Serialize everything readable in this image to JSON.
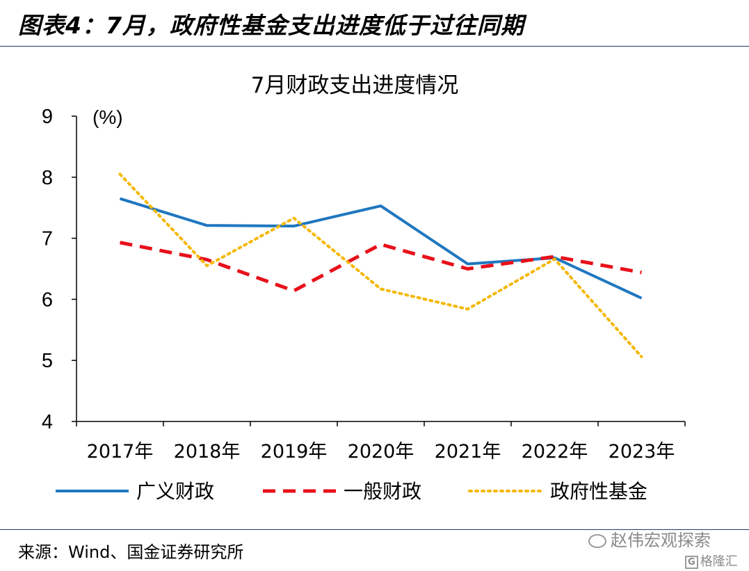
{
  "header": {
    "title": "图表4：7月，政府性基金支出进度低于过往同期"
  },
  "footer": {
    "source": "来源：Wind、国金证券研究所"
  },
  "watermark": {
    "text": "赵伟宏观探索",
    "logo_text": "格隆汇"
  },
  "chart_data": {
    "type": "line",
    "title": "7月财政支出进度情况",
    "ylabel": "(%)",
    "ylim": [
      4,
      9
    ],
    "yticks": [
      4,
      5,
      6,
      7,
      8,
      9
    ],
    "categories": [
      "2017年",
      "2018年",
      "2019年",
      "2020年",
      "2021年",
      "2022年",
      "2023年"
    ],
    "grid": false,
    "legend_position": "bottom",
    "series": [
      {
        "name": "广义财政",
        "values": [
          7.65,
          7.21,
          7.2,
          7.53,
          6.58,
          6.68,
          6.02
        ],
        "color": "#1f77c0",
        "style": "solid"
      },
      {
        "name": "一般财政",
        "values": [
          6.93,
          6.65,
          6.14,
          6.9,
          6.5,
          6.7,
          6.44
        ],
        "color": "#e8101a",
        "style": "dashed"
      },
      {
        "name": "政府性基金",
        "values": [
          8.05,
          6.55,
          7.33,
          6.17,
          5.84,
          6.66,
          5.06
        ],
        "color": "#f5b700",
        "style": "dotted"
      }
    ]
  }
}
